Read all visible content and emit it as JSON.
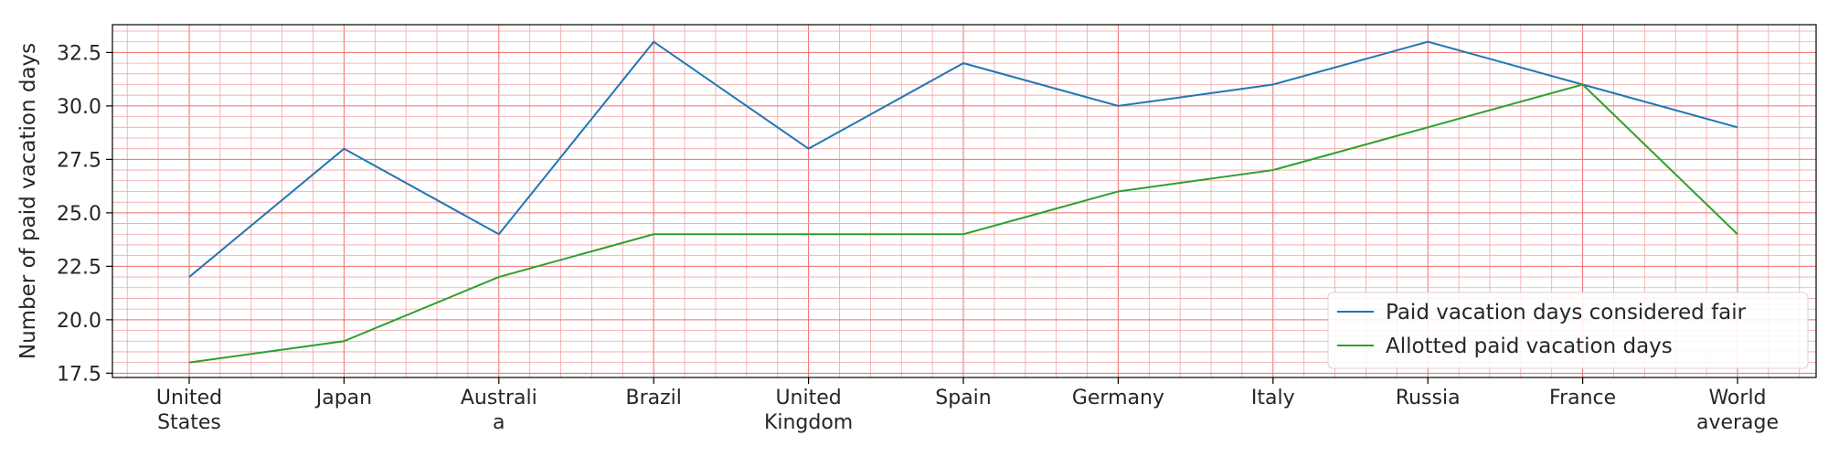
{
  "chart_data": {
    "type": "line",
    "categories": [
      [
        "United",
        "States"
      ],
      [
        "Japan"
      ],
      [
        "Australi",
        "a"
      ],
      [
        "Brazil"
      ],
      [
        "United",
        "Kingdom"
      ],
      [
        "Spain"
      ],
      [
        "Germany"
      ],
      [
        "Italy"
      ],
      [
        "Russia"
      ],
      [
        "France"
      ],
      [
        "World",
        "average"
      ]
    ],
    "series": [
      {
        "name": "Paid vacation days considered fair",
        "color": "#1f77b4",
        "values": [
          22,
          28,
          24,
          33,
          28,
          32,
          30,
          31,
          33,
          31,
          29
        ]
      },
      {
        "name": "Allotted paid vacation days",
        "color": "#2ca02c",
        "values": [
          18,
          19,
          22,
          24,
          24,
          24,
          26,
          27,
          29,
          31,
          24
        ]
      }
    ],
    "xlabel": "",
    "ylabel": "Number of paid vacation days",
    "ylim": [
      17.3,
      33.8
    ],
    "yticks": [
      17.5,
      20.0,
      22.5,
      25.0,
      27.5,
      30.0,
      32.5
    ],
    "grid": "major and minor, red",
    "legend_position": "lower-right"
  }
}
